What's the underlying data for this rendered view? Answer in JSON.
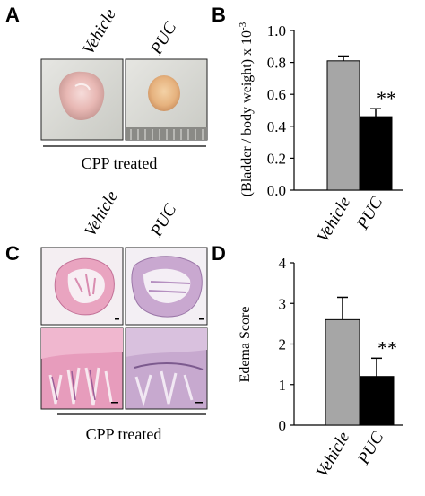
{
  "panels": {
    "a": {
      "letter": "A",
      "labels": [
        "Vehicle",
        "PUC"
      ],
      "caption": "CPP treated"
    },
    "c": {
      "letter": "C",
      "labels": [
        "Vehicle",
        "PUC"
      ],
      "caption": "CPP treated"
    },
    "b": {
      "letter": "B"
    },
    "d": {
      "letter": "D"
    }
  },
  "chart_data": [
    {
      "type": "bar",
      "categories": [
        "Vehicle",
        "PUC"
      ],
      "values": [
        0.81,
        0.46
      ],
      "errors": [
        0.03,
        0.05
      ],
      "colors": [
        "#a6a6a6",
        "#000000"
      ],
      "significance": [
        "",
        "**"
      ],
      "ylabel": "(Bladder / body weight) x 10-3",
      "ylabel_main": "(Bladder / body weight) x 10",
      "ylabel_exp": "-3",
      "ylim": [
        0,
        1.0
      ],
      "yticks": [
        "0.0",
        "0.2",
        "0.4",
        "0.6",
        "0.8",
        "1.0"
      ]
    },
    {
      "type": "bar",
      "categories": [
        "Vehicle",
        "PUC"
      ],
      "values": [
        2.6,
        1.2
      ],
      "errors": [
        0.55,
        0.45
      ],
      "colors": [
        "#a6a6a6",
        "#000000"
      ],
      "significance": [
        "",
        "**"
      ],
      "ylabel": "Edema Score",
      "ylim": [
        0,
        4
      ],
      "yticks": [
        "0",
        "1",
        "2",
        "3",
        "4"
      ]
    }
  ]
}
